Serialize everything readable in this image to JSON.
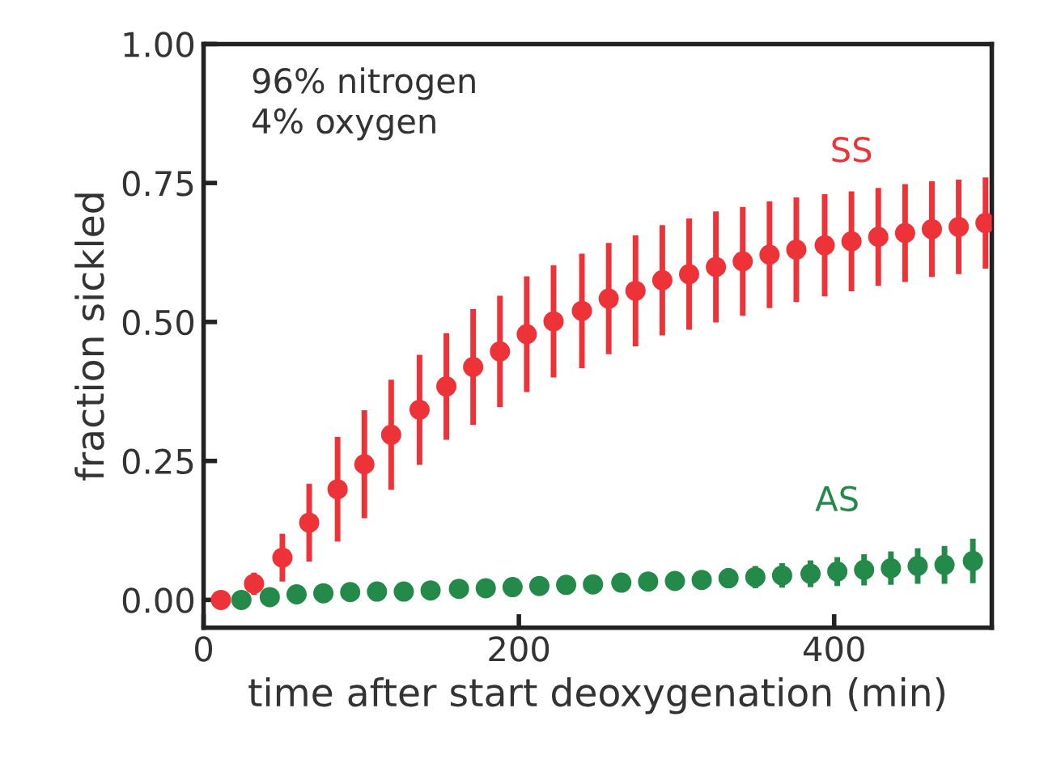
{
  "chart_data": {
    "type": "scatter",
    "xlabel": "time after start deoxygenation (min)",
    "ylabel": "fraction sickled",
    "xlim": [
      0,
      500
    ],
    "ylim": [
      -0.05,
      1.0
    ],
    "xticks": [
      0,
      200,
      400
    ],
    "yticks": [
      {
        "value": 0,
        "label": "0.00"
      },
      {
        "value": 0.25,
        "label": "0.25"
      },
      {
        "value": 0.5,
        "label": "0.50"
      },
      {
        "value": 0.75,
        "label": "0.75"
      },
      {
        "value": 1.0,
        "label": "1.00"
      }
    ],
    "grid": false,
    "legend": false,
    "marker": "circle",
    "annotations": [
      {
        "text": "96% nitrogen\n4% oxygen"
      }
    ],
    "series": [
      {
        "name": "SS",
        "color": "#ee3338",
        "x": [
          11,
          32,
          50,
          67,
          85,
          102,
          119,
          137,
          154,
          171,
          188,
          205,
          222,
          240,
          257,
          274,
          291,
          308,
          325,
          342,
          359,
          376,
          394,
          411,
          428,
          445,
          462,
          479,
          496
        ],
        "values": [
          0,
          0.029,
          0.076,
          0.139,
          0.199,
          0.244,
          0.297,
          0.342,
          0.384,
          0.419,
          0.447,
          0.478,
          0.501,
          0.52,
          0.542,
          0.556,
          0.575,
          0.586,
          0.599,
          0.609,
          0.621,
          0.63,
          0.638,
          0.645,
          0.653,
          0.66,
          0.667,
          0.671,
          0.678
        ],
        "errors": [
          null,
          0.02,
          0.043,
          0.07,
          0.094,
          0.097,
          0.099,
          0.099,
          0.096,
          0.104,
          0.1,
          0.104,
          0.101,
          0.103,
          0.1,
          0.1,
          0.099,
          0.1,
          0.1,
          0.098,
          0.096,
          0.094,
          0.092,
          0.09,
          0.088,
          0.088,
          0.086,
          0.085,
          0.082
        ]
      },
      {
        "name": "AS",
        "color": "#238a4a",
        "x": [
          24,
          42,
          59,
          76,
          93,
          110,
          127,
          144,
          162,
          179,
          196,
          213,
          230,
          247,
          265,
          282,
          299,
          316,
          333,
          350,
          367,
          385,
          402,
          419,
          436,
          453,
          470,
          488
        ],
        "values": [
          0,
          0.005,
          0.01,
          0.012,
          0.014,
          0.015,
          0.015,
          0.017,
          0.02,
          0.021,
          0.023,
          0.025,
          0.027,
          0.028,
          0.031,
          0.033,
          0.034,
          0.036,
          0.039,
          0.041,
          0.044,
          0.047,
          0.051,
          0.054,
          0.057,
          0.061,
          0.063,
          0.07
        ],
        "errors": [
          null,
          null,
          null,
          null,
          null,
          null,
          null,
          null,
          null,
          null,
          null,
          null,
          null,
          0.01,
          0.012,
          0.014,
          0.015,
          0.017,
          0.018,
          0.02,
          0.022,
          0.024,
          0.026,
          0.028,
          0.03,
          0.032,
          0.034,
          0.04
        ]
      }
    ]
  }
}
